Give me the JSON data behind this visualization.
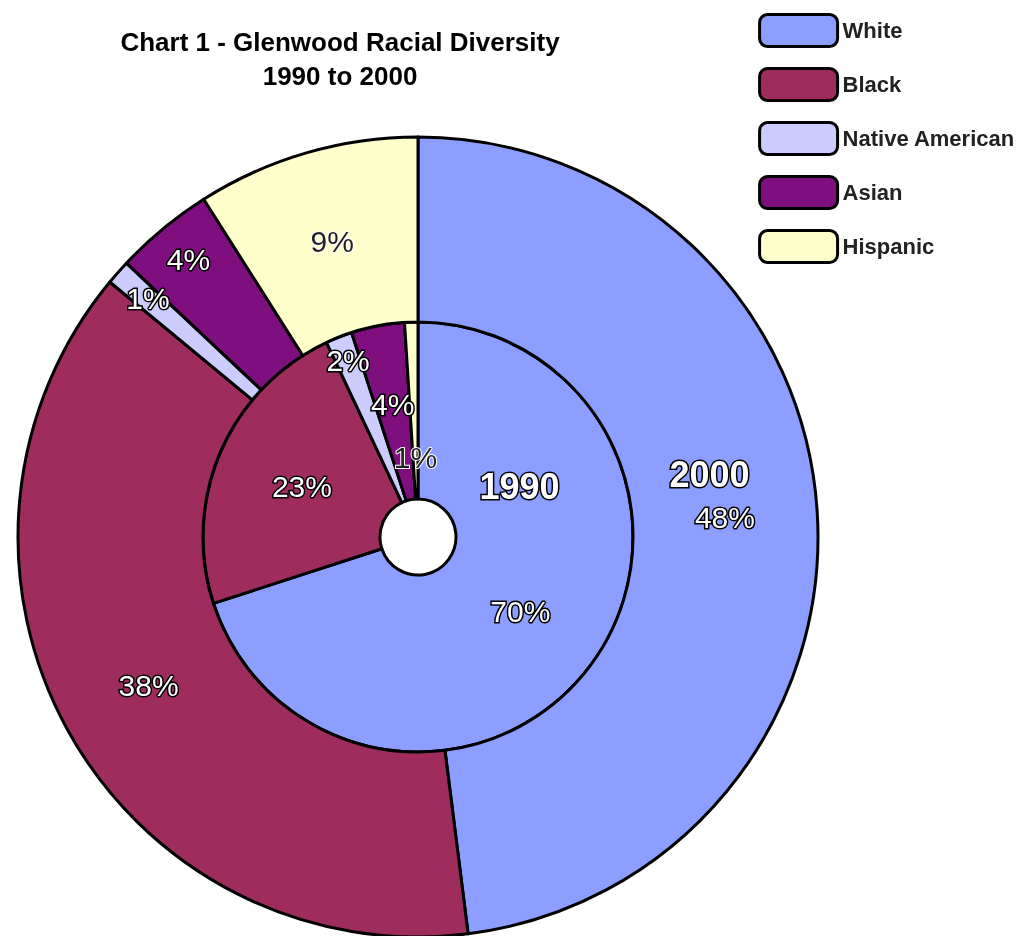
{
  "chart_data": {
    "type": "donut",
    "title": "Chart 1 - Glenwood Racial Diversity\n1990 to 2000",
    "categories": [
      "White",
      "Black",
      "Native American",
      "Asian",
      "Hispanic"
    ],
    "colors": [
      "#8c9eff",
      "#9e2d5e",
      "#ccccff",
      "#7f0f7f",
      "#ffffcc"
    ],
    "series": [
      {
        "name": "1990",
        "values": [
          70,
          23,
          2,
          4,
          1
        ],
        "value_labels": [
          "70%",
          "23%",
          "2%",
          "4%",
          "1%"
        ]
      },
      {
        "name": "2000",
        "values": [
          48,
          38,
          1,
          4,
          9
        ],
        "value_labels": [
          "48%",
          "38%",
          "1%",
          "4%",
          "9%"
        ]
      }
    ],
    "legend": "top right"
  }
}
